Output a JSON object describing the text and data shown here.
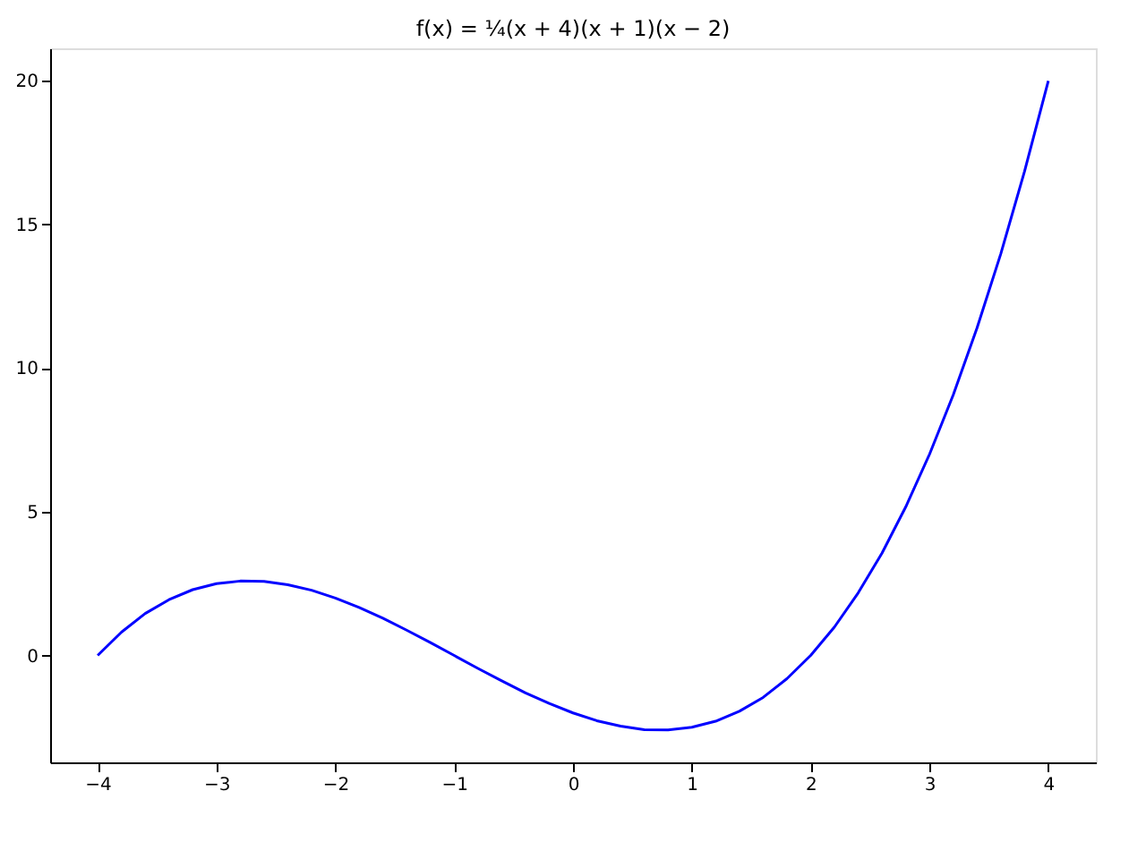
{
  "chart_data": {
    "type": "line",
    "title": "f(x) = ¼(x + 4)(x + 1)(x − 2)",
    "x": [
      -4,
      -3.8,
      -3.6,
      -3.4,
      -3.2,
      -3,
      -2.8,
      -2.6,
      -2.4,
      -2.2,
      -2,
      -1.8,
      -1.6,
      -1.4,
      -1.2,
      -1,
      -0.8,
      -0.6,
      -0.4,
      -0.2,
      0,
      0.2,
      0.4,
      0.6,
      0.8,
      1,
      1.2,
      1.4,
      1.6,
      1.8,
      2,
      2.2,
      2.4,
      2.6,
      2.8,
      3,
      3.2,
      3.4,
      3.6,
      3.8,
      4
    ],
    "series": [
      {
        "color": "#0000ff",
        "values": [
          0,
          0.81,
          1.46,
          1.94,
          2.29,
          2.5,
          2.59,
          2.58,
          2.46,
          2.27,
          2,
          1.67,
          1.3,
          0.88,
          0.45,
          0,
          -0.45,
          -0.88,
          -1.3,
          -1.67,
          -2,
          -2.27,
          -2.46,
          -2.58,
          -2.59,
          -2.5,
          -2.29,
          -1.94,
          -1.46,
          -0.81,
          0,
          0.99,
          2.18,
          3.56,
          5.17,
          7,
          9.07,
          11.4,
          13.98,
          16.85,
          20
        ]
      }
    ],
    "xlim": [
      -4.4,
      4.4
    ],
    "ylim": [
      -3.72,
      21.13
    ],
    "xticks": [
      {
        "value": -4,
        "label": "−4"
      },
      {
        "value": -3,
        "label": "−3"
      },
      {
        "value": -2,
        "label": "−2"
      },
      {
        "value": -1,
        "label": "−1"
      },
      0,
      1,
      2,
      3,
      4
    ],
    "yticks": [
      0,
      5,
      10,
      15,
      20
    ],
    "grid": false,
    "marker": "none",
    "line_style": "solid"
  }
}
